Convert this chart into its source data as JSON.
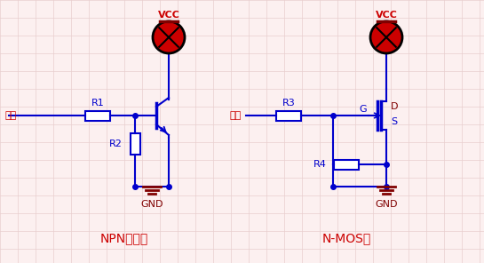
{
  "bg_color": "#fcf0f0",
  "grid_color": "#e8cece",
  "line_color": "#0000cc",
  "red_color": "#cc0000",
  "dark_red": "#800000",
  "label_npn": "NPN三極管",
  "label_nmos": "N-MOS管",
  "vcc_label": "VCC",
  "gnd_label": "GND",
  "input_label": "輸入",
  "r1_label": "R1",
  "r2_label": "R2",
  "r3_label": "R3",
  "r4_label": "R4",
  "g_label": "G",
  "d_label": "D",
  "s_label": "S"
}
